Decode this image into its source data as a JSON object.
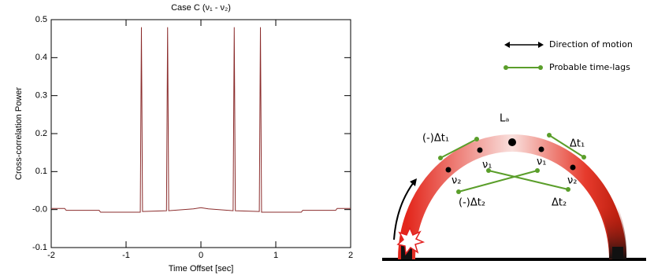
{
  "chart_data": {
    "type": "line",
    "title": "Case C (ν₁ - ν₂)",
    "x_label": "Time Offset [sec]",
    "y_label": "Cross-correlation Power",
    "x": [
      -2,
      -1.82,
      -1.8,
      -1.36,
      -1.34,
      -0.81,
      -0.795,
      -0.78,
      -0.46,
      -0.445,
      -0.43,
      -0.1,
      0,
      0.1,
      0.43,
      0.445,
      0.46,
      0.78,
      0.795,
      0.81,
      1.34,
      1.36,
      1.8,
      1.82,
      2
    ],
    "values": [
      0.003,
      0.003,
      -0.002,
      -0.002,
      -0.007,
      -0.007,
      0.48,
      -0.005,
      -0.003,
      0.48,
      -0.003,
      0.002,
      0.005,
      0.002,
      -0.003,
      0.48,
      -0.003,
      -0.005,
      0.48,
      -0.007,
      -0.007,
      -0.002,
      -0.002,
      0.003,
      0.003
    ],
    "color": "#8b2c2c",
    "xlim": [
      -2,
      2
    ],
    "xticks": [
      -2,
      -1,
      0,
      1,
      2
    ],
    "ylim": [
      -0.1,
      0.5
    ],
    "yticks": [
      -0.1,
      {
        "value": 0,
        "label": "-0.0"
      },
      0.1,
      0.2,
      0.3,
      0.4,
      0.5
    ],
    "grid": false
  },
  "diagram": {
    "legend": [
      "Direction of motion",
      "Probable time-lags"
    ],
    "labels": [
      "Lₐ",
      "(-)Δt₁",
      "Δt₁",
      "ν₁",
      "ν₁",
      "ν₂",
      "ν₂",
      "(-)Δt₂",
      "Δt₂"
    ]
  }
}
